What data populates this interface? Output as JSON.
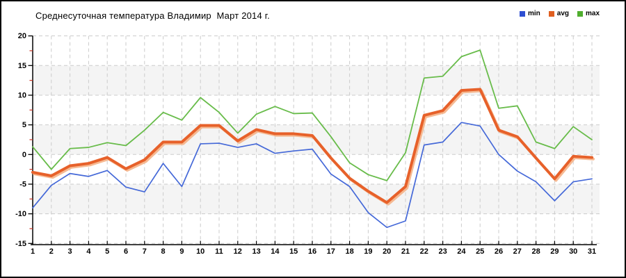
{
  "title": "Среднесуточная температура Владимир  Март 2014 г.",
  "legend": [
    {
      "label": "min",
      "color": "#2E4FD2"
    },
    {
      "label": "avg",
      "color": "#E05F20"
    },
    {
      "label": "max",
      "color": "#4FAE2E"
    }
  ],
  "chart_data": {
    "type": "line",
    "title": "Среднесуточная температура Владимир  Март 2014 г.",
    "xlabel": "",
    "ylabel": "",
    "x": [
      1,
      2,
      3,
      4,
      5,
      6,
      7,
      8,
      9,
      10,
      11,
      12,
      13,
      14,
      15,
      16,
      17,
      18,
      19,
      20,
      21,
      22,
      23,
      24,
      25,
      26,
      27,
      28,
      29,
      30,
      31
    ],
    "series": [
      {
        "name": "min",
        "color": "#4468D8",
        "values": [
          -9.0,
          -5.2,
          -3.2,
          -3.7,
          -2.7,
          -5.5,
          -6.3,
          -1.5,
          -5.4,
          1.8,
          1.9,
          1.2,
          1.8,
          0.2,
          0.6,
          0.9,
          -3.3,
          -5.4,
          -9.8,
          -12.3,
          -11.2,
          1.6,
          2.1,
          5.4,
          4.8,
          0.0,
          -2.8,
          -4.6,
          -7.8,
          -4.6,
          -4.1
        ]
      },
      {
        "name": "avg",
        "color": "#E7612A",
        "shadow_color": "#F5B287",
        "values": [
          -3.0,
          -3.6,
          -1.9,
          -1.5,
          -0.5,
          -2.4,
          -0.9,
          2.1,
          2.1,
          4.9,
          4.9,
          2.3,
          4.2,
          3.5,
          3.5,
          3.2,
          -0.6,
          -4.0,
          -6.2,
          -8.1,
          -5.4,
          6.6,
          7.4,
          10.8,
          11.0,
          4.1,
          3.0,
          -0.6,
          -4.1,
          -0.3,
          -0.5
        ]
      },
      {
        "name": "max",
        "color": "#68BC4A",
        "values": [
          1.3,
          -2.5,
          1.0,
          1.2,
          2.0,
          1.5,
          4.1,
          7.1,
          5.8,
          9.6,
          7.1,
          3.6,
          6.8,
          8.1,
          6.9,
          7.0,
          3.0,
          -1.4,
          -3.4,
          -4.4,
          0.3,
          12.9,
          13.2,
          16.5,
          17.6,
          7.8,
          8.2,
          2.1,
          1.0,
          4.7,
          2.5
        ]
      }
    ],
    "ylim": [
      -15,
      20
    ],
    "yticks": [
      20,
      15,
      10,
      5,
      0,
      -5,
      -10,
      -15
    ],
    "minor_ytick_step": 2.5,
    "grid": "dashed",
    "legend_position": "top-right",
    "shaded_bands": [
      [
        10,
        15
      ],
      [
        0,
        5
      ],
      [
        -10,
        -5
      ]
    ],
    "colors": {
      "grid": "#CBCBCB",
      "band": "#F4F4F4",
      "axis": "#000000",
      "minor_tick": "#CC3322",
      "background": "#FFFFFF"
    }
  }
}
